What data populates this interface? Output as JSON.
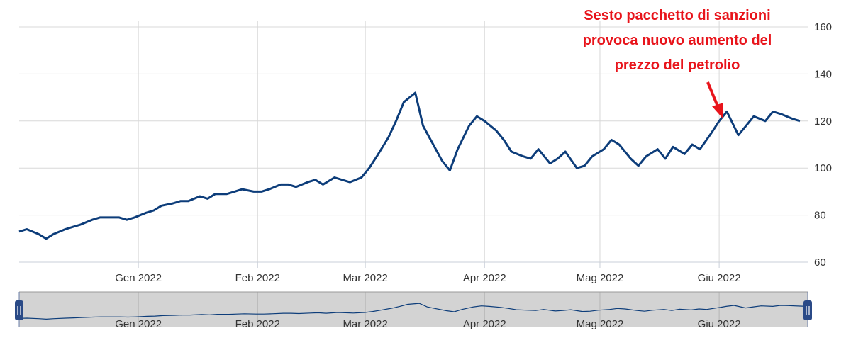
{
  "chart_data": {
    "type": "line",
    "title": "",
    "xlabel": "",
    "ylabel": "",
    "ylim": [
      60,
      160
    ],
    "y_ticks": [
      60,
      80,
      100,
      120,
      140,
      160
    ],
    "y_axis_side": "right",
    "x_ticks": [
      "Gen 2022",
      "Feb 2022",
      "Mar 2022",
      "Apr 2022",
      "Mag 2022",
      "Giu 2022"
    ],
    "grid": true,
    "navigator": true,
    "colors": {
      "line": "#0d3d7a",
      "grid": "#d8d8d8",
      "annotation": "#e8141b",
      "navigator_bg": "#d3d3d3"
    },
    "annotation": {
      "lines": [
        "Sesto pacchetto di sanzioni",
        "provoca nuovo aumento del",
        "prezzo del petrolio"
      ],
      "points_to_date": "2022-06-01"
    },
    "series": [
      {
        "x": [
          "2021-12-01",
          "2021-12-03",
          "2021-12-06",
          "2021-12-08",
          "2021-12-10",
          "2021-12-13",
          "2021-12-15",
          "2021-12-17",
          "2021-12-20",
          "2021-12-22",
          "2021-12-24",
          "2021-12-27",
          "2021-12-29",
          "2021-12-31",
          "2022-01-03",
          "2022-01-05",
          "2022-01-07",
          "2022-01-10",
          "2022-01-12",
          "2022-01-14",
          "2022-01-17",
          "2022-01-19",
          "2022-01-21",
          "2022-01-24",
          "2022-01-26",
          "2022-01-28",
          "2022-01-31",
          "2022-02-02",
          "2022-02-04",
          "2022-02-07",
          "2022-02-09",
          "2022-02-11",
          "2022-02-14",
          "2022-02-16",
          "2022-02-18",
          "2022-02-21",
          "2022-02-23",
          "2022-02-25",
          "2022-02-28",
          "2022-03-02",
          "2022-03-04",
          "2022-03-07",
          "2022-03-09",
          "2022-03-11",
          "2022-03-14",
          "2022-03-16",
          "2022-03-18",
          "2022-03-21",
          "2022-03-23",
          "2022-03-25",
          "2022-03-28",
          "2022-03-30",
          "2022-04-01",
          "2022-04-04",
          "2022-04-06",
          "2022-04-08",
          "2022-04-11",
          "2022-04-13",
          "2022-04-15",
          "2022-04-18",
          "2022-04-20",
          "2022-04-22",
          "2022-04-25",
          "2022-04-27",
          "2022-04-29",
          "2022-05-02",
          "2022-05-04",
          "2022-05-06",
          "2022-05-09",
          "2022-05-11",
          "2022-05-13",
          "2022-05-16",
          "2022-05-18",
          "2022-05-20",
          "2022-05-23",
          "2022-05-25",
          "2022-05-27",
          "2022-05-30",
          "2022-06-01",
          "2022-06-03",
          "2022-06-06",
          "2022-06-08",
          "2022-06-10",
          "2022-06-13",
          "2022-06-15",
          "2022-06-17",
          "2022-06-20",
          "2022-06-22"
        ],
        "y": [
          73,
          74,
          72,
          70,
          72,
          74,
          75,
          76,
          78,
          79,
          79,
          79,
          78,
          79,
          81,
          82,
          84,
          85,
          86,
          86,
          88,
          87,
          89,
          89,
          90,
          91,
          90,
          90,
          91,
          93,
          93,
          92,
          94,
          95,
          93,
          96,
          95,
          94,
          96,
          100,
          105,
          113,
          120,
          128,
          132,
          118,
          112,
          103,
          99,
          108,
          118,
          122,
          120,
          116,
          112,
          107,
          105,
          104,
          108,
          102,
          104,
          107,
          100,
          101,
          105,
          108,
          112,
          110,
          104,
          101,
          105,
          108,
          104,
          109,
          106,
          110,
          108,
          115,
          120,
          124,
          114,
          118,
          122,
          120,
          124,
          123,
          121,
          120
        ]
      }
    ]
  }
}
